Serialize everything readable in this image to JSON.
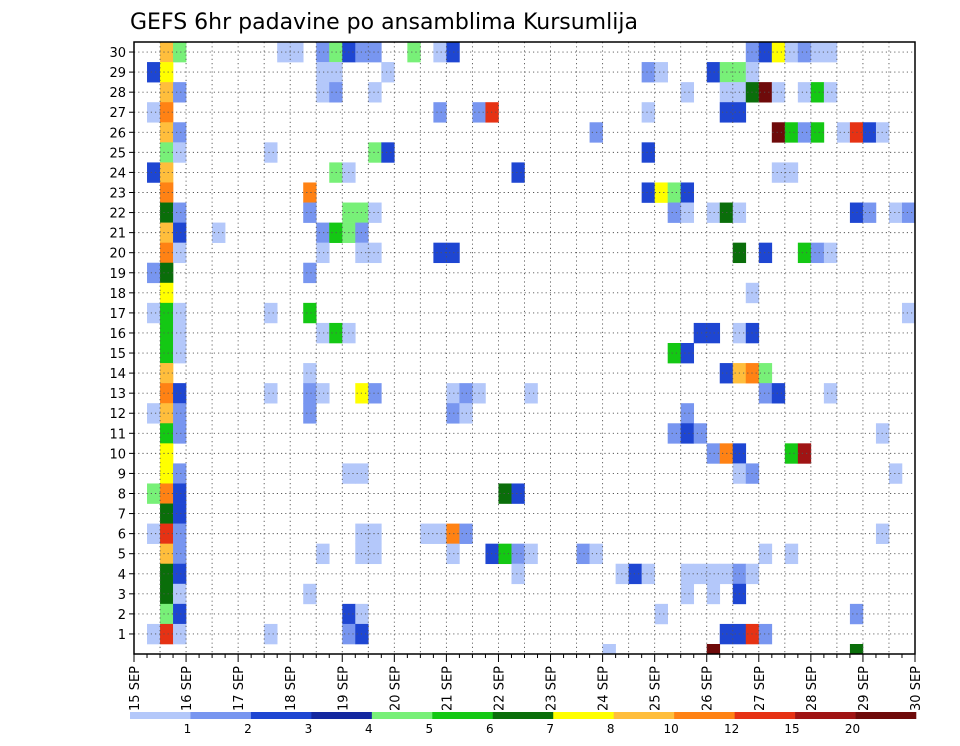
{
  "chart_data": {
    "type": "heatmap",
    "title": "GEFS 6hr padavine po ansamblima Kursumlija",
    "x_dates": [
      "15 SEP",
      "16 SEP",
      "17 SEP",
      "18 SEP",
      "19 SEP",
      "20 SEP",
      "21 SEP",
      "22 SEP",
      "23 SEP",
      "24 SEP",
      "25 SEP",
      "26 SEP",
      "27 SEP",
      "28 SEP",
      "29 SEP",
      "30 SEP"
    ],
    "x_range_steps": [
      0,
      60
    ],
    "steps_per_day": 4,
    "y_members": [
      1,
      2,
      3,
      4,
      5,
      6,
      7,
      8,
      9,
      10,
      11,
      12,
      13,
      14,
      15,
      16,
      17,
      18,
      19,
      20,
      21,
      22,
      23,
      24,
      25,
      26,
      27,
      28,
      29,
      30
    ],
    "grid": "dotted",
    "legend": {
      "placement": "bottom",
      "labels": [
        "1",
        "2",
        "3",
        "4",
        "5",
        "6",
        "7",
        "8",
        "10",
        "12",
        "15",
        "20"
      ],
      "colors": [
        "#b4c8fa",
        "#7896f0",
        "#1e46d2",
        "#1428a0",
        "#78f078",
        "#14c814",
        "#0a6e0a",
        "#ffff00",
        "#ffbe3c",
        "#ff8214",
        "#e63214",
        "#a01414",
        "#6e0a0a"
      ]
    },
    "cells": [
      [
        30,
        2,
        8
      ],
      [
        30,
        3,
        4
      ],
      [
        30,
        11,
        0
      ],
      [
        30,
        12,
        0
      ],
      [
        30,
        14,
        1
      ],
      [
        30,
        15,
        4
      ],
      [
        30,
        16,
        2
      ],
      [
        30,
        17,
        1
      ],
      [
        30,
        18,
        1
      ],
      [
        30,
        21,
        4
      ],
      [
        30,
        23,
        0
      ],
      [
        30,
        24,
        2
      ],
      [
        30,
        47,
        1
      ],
      [
        30,
        48,
        2
      ],
      [
        30,
        49,
        7
      ],
      [
        30,
        50,
        0
      ],
      [
        30,
        51,
        1
      ],
      [
        30,
        52,
        0
      ],
      [
        30,
        53,
        0
      ],
      [
        29,
        1,
        2
      ],
      [
        29,
        2,
        7
      ],
      [
        29,
        14,
        0
      ],
      [
        29,
        15,
        0
      ],
      [
        29,
        19,
        0
      ],
      [
        29,
        39,
        1
      ],
      [
        29,
        40,
        0
      ],
      [
        29,
        44,
        2
      ],
      [
        29,
        45,
        4
      ],
      [
        29,
        46,
        4
      ],
      [
        29,
        47,
        0
      ],
      [
        28,
        2,
        8
      ],
      [
        28,
        3,
        1
      ],
      [
        28,
        14,
        0
      ],
      [
        28,
        15,
        1
      ],
      [
        28,
        18,
        0
      ],
      [
        28,
        42,
        0
      ],
      [
        28,
        45,
        0
      ],
      [
        28,
        46,
        0
      ],
      [
        28,
        47,
        6
      ],
      [
        28,
        48,
        12
      ],
      [
        28,
        49,
        0
      ],
      [
        28,
        51,
        0
      ],
      [
        28,
        52,
        5
      ],
      [
        28,
        53,
        0
      ],
      [
        27,
        1,
        0
      ],
      [
        27,
        2,
        9
      ],
      [
        27,
        23,
        1
      ],
      [
        27,
        26,
        1
      ],
      [
        27,
        27,
        10
      ],
      [
        27,
        39,
        0
      ],
      [
        27,
        45,
        2
      ],
      [
        27,
        46,
        2
      ],
      [
        26,
        2,
        8
      ],
      [
        26,
        3,
        1
      ],
      [
        26,
        35,
        1
      ],
      [
        26,
        49,
        12
      ],
      [
        26,
        50,
        5
      ],
      [
        26,
        51,
        1
      ],
      [
        26,
        52,
        5
      ],
      [
        26,
        54,
        0
      ],
      [
        26,
        55,
        10
      ],
      [
        26,
        56,
        2
      ],
      [
        26,
        57,
        0
      ],
      [
        25,
        2,
        4
      ],
      [
        25,
        3,
        0
      ],
      [
        25,
        10,
        0
      ],
      [
        25,
        18,
        4
      ],
      [
        25,
        19,
        2
      ],
      [
        25,
        39,
        2
      ],
      [
        24,
        1,
        2
      ],
      [
        24,
        2,
        8
      ],
      [
        24,
        15,
        4
      ],
      [
        24,
        16,
        0
      ],
      [
        24,
        29,
        2
      ],
      [
        24,
        49,
        0
      ],
      [
        24,
        50,
        0
      ],
      [
        23,
        2,
        9
      ],
      [
        23,
        13,
        9
      ],
      [
        23,
        39,
        2
      ],
      [
        23,
        40,
        7
      ],
      [
        23,
        41,
        4
      ],
      [
        23,
        42,
        2
      ],
      [
        22,
        2,
        6
      ],
      [
        22,
        3,
        1
      ],
      [
        22,
        13,
        1
      ],
      [
        22,
        16,
        4
      ],
      [
        22,
        17,
        4
      ],
      [
        22,
        18,
        0
      ],
      [
        22,
        41,
        1
      ],
      [
        22,
        42,
        0
      ],
      [
        22,
        44,
        0
      ],
      [
        22,
        45,
        6
      ],
      [
        22,
        46,
        0
      ],
      [
        22,
        55,
        2
      ],
      [
        22,
        56,
        1
      ],
      [
        22,
        58,
        0
      ],
      [
        22,
        59,
        1
      ],
      [
        21,
        2,
        8
      ],
      [
        21,
        3,
        2
      ],
      [
        21,
        6,
        0
      ],
      [
        21,
        14,
        1
      ],
      [
        21,
        15,
        5
      ],
      [
        21,
        16,
        4
      ],
      [
        21,
        17,
        1
      ],
      [
        20,
        2,
        9
      ],
      [
        20,
        3,
        0
      ],
      [
        20,
        14,
        0
      ],
      [
        20,
        17,
        0
      ],
      [
        20,
        18,
        0
      ],
      [
        20,
        23,
        2
      ],
      [
        20,
        24,
        2
      ],
      [
        20,
        46,
        6
      ],
      [
        20,
        48,
        2
      ],
      [
        20,
        51,
        5
      ],
      [
        20,
        52,
        1
      ],
      [
        20,
        53,
        0
      ],
      [
        19,
        1,
        1
      ],
      [
        19,
        2,
        6
      ],
      [
        19,
        13,
        1
      ],
      [
        18,
        2,
        7
      ],
      [
        18,
        47,
        0
      ],
      [
        17,
        1,
        0
      ],
      [
        17,
        2,
        5
      ],
      [
        17,
        3,
        0
      ],
      [
        17,
        10,
        0
      ],
      [
        17,
        13,
        5
      ],
      [
        17,
        59,
        0
      ],
      [
        16,
        2,
        5
      ],
      [
        16,
        3,
        0
      ],
      [
        16,
        14,
        0
      ],
      [
        16,
        15,
        5
      ],
      [
        16,
        16,
        0
      ],
      [
        16,
        43,
        2
      ],
      [
        16,
        44,
        2
      ],
      [
        16,
        46,
        0
      ],
      [
        16,
        47,
        2
      ],
      [
        15,
        2,
        5
      ],
      [
        15,
        3,
        0
      ],
      [
        15,
        41,
        5
      ],
      [
        15,
        42,
        2
      ],
      [
        14,
        2,
        8
      ],
      [
        14,
        13,
        0
      ],
      [
        14,
        45,
        2
      ],
      [
        14,
        46,
        8
      ],
      [
        14,
        47,
        9
      ],
      [
        14,
        48,
        4
      ],
      [
        13,
        2,
        9
      ],
      [
        13,
        3,
        2
      ],
      [
        13,
        10,
        0
      ],
      [
        13,
        13,
        1
      ],
      [
        13,
        14,
        0
      ],
      [
        13,
        17,
        7
      ],
      [
        13,
        18,
        1
      ],
      [
        13,
        24,
        0
      ],
      [
        13,
        25,
        1
      ],
      [
        13,
        26,
        0
      ],
      [
        13,
        30,
        0
      ],
      [
        13,
        48,
        1
      ],
      [
        13,
        49,
        2
      ],
      [
        13,
        53,
        0
      ],
      [
        12,
        1,
        0
      ],
      [
        12,
        2,
        8
      ],
      [
        12,
        3,
        1
      ],
      [
        12,
        13,
        1
      ],
      [
        12,
        24,
        1
      ],
      [
        12,
        25,
        0
      ],
      [
        12,
        42,
        1
      ],
      [
        11,
        2,
        5
      ],
      [
        11,
        3,
        1
      ],
      [
        11,
        41,
        1
      ],
      [
        11,
        42,
        2
      ],
      [
        11,
        43,
        1
      ],
      [
        11,
        57,
        0
      ],
      [
        10,
        2,
        7
      ],
      [
        10,
        44,
        1
      ],
      [
        10,
        45,
        9
      ],
      [
        10,
        46,
        2
      ],
      [
        10,
        50,
        5
      ],
      [
        10,
        51,
        11
      ],
      [
        9,
        2,
        7
      ],
      [
        9,
        3,
        1
      ],
      [
        9,
        16,
        0
      ],
      [
        9,
        17,
        0
      ],
      [
        9,
        46,
        0
      ],
      [
        9,
        47,
        1
      ],
      [
        9,
        58,
        0
      ],
      [
        8,
        1,
        4
      ],
      [
        8,
        2,
        9
      ],
      [
        8,
        3,
        2
      ],
      [
        8,
        28,
        6
      ],
      [
        8,
        29,
        2
      ],
      [
        7,
        2,
        6
      ],
      [
        7,
        3,
        2
      ],
      [
        6,
        1,
        0
      ],
      [
        6,
        2,
        10
      ],
      [
        6,
        3,
        1
      ],
      [
        6,
        17,
        0
      ],
      [
        6,
        18,
        0
      ],
      [
        6,
        22,
        0
      ],
      [
        6,
        23,
        0
      ],
      [
        6,
        24,
        9
      ],
      [
        6,
        25,
        1
      ],
      [
        6,
        57,
        0
      ],
      [
        5,
        2,
        8
      ],
      [
        5,
        3,
        1
      ],
      [
        5,
        14,
        0
      ],
      [
        5,
        17,
        0
      ],
      [
        5,
        18,
        0
      ],
      [
        5,
        24,
        0
      ],
      [
        5,
        27,
        2
      ],
      [
        5,
        28,
        5
      ],
      [
        5,
        29,
        1
      ],
      [
        5,
        30,
        0
      ],
      [
        5,
        34,
        1
      ],
      [
        5,
        35,
        0
      ],
      [
        5,
        48,
        0
      ],
      [
        5,
        50,
        0
      ],
      [
        4,
        2,
        6
      ],
      [
        4,
        3,
        2
      ],
      [
        4,
        37,
        0
      ],
      [
        4,
        38,
        2
      ],
      [
        4,
        39,
        0
      ],
      [
        4,
        42,
        0
      ],
      [
        4,
        43,
        0
      ],
      [
        4,
        44,
        0
      ],
      [
        4,
        45,
        0
      ],
      [
        4,
        46,
        1
      ],
      [
        4,
        47,
        0
      ],
      [
        4,
        29,
        0
      ],
      [
        3,
        2,
        6
      ],
      [
        3,
        3,
        0
      ],
      [
        3,
        13,
        0
      ],
      [
        3,
        42,
        0
      ],
      [
        3,
        44,
        0
      ],
      [
        3,
        46,
        2
      ],
      [
        2,
        2,
        4
      ],
      [
        2,
        3,
        2
      ],
      [
        2,
        16,
        2
      ],
      [
        2,
        17,
        0
      ],
      [
        2,
        40,
        0
      ],
      [
        2,
        55,
        1
      ],
      [
        1,
        1,
        0
      ],
      [
        1,
        2,
        10
      ],
      [
        1,
        3,
        0
      ],
      [
        1,
        10,
        0
      ],
      [
        1,
        16,
        1
      ],
      [
        1,
        17,
        2
      ],
      [
        1,
        45,
        2
      ],
      [
        1,
        46,
        2
      ],
      [
        1,
        47,
        10
      ],
      [
        1,
        48,
        1
      ]
    ],
    "bottom_cells": [
      [
        36,
        0
      ],
      [
        44,
        12
      ],
      [
        55,
        6
      ]
    ]
  }
}
